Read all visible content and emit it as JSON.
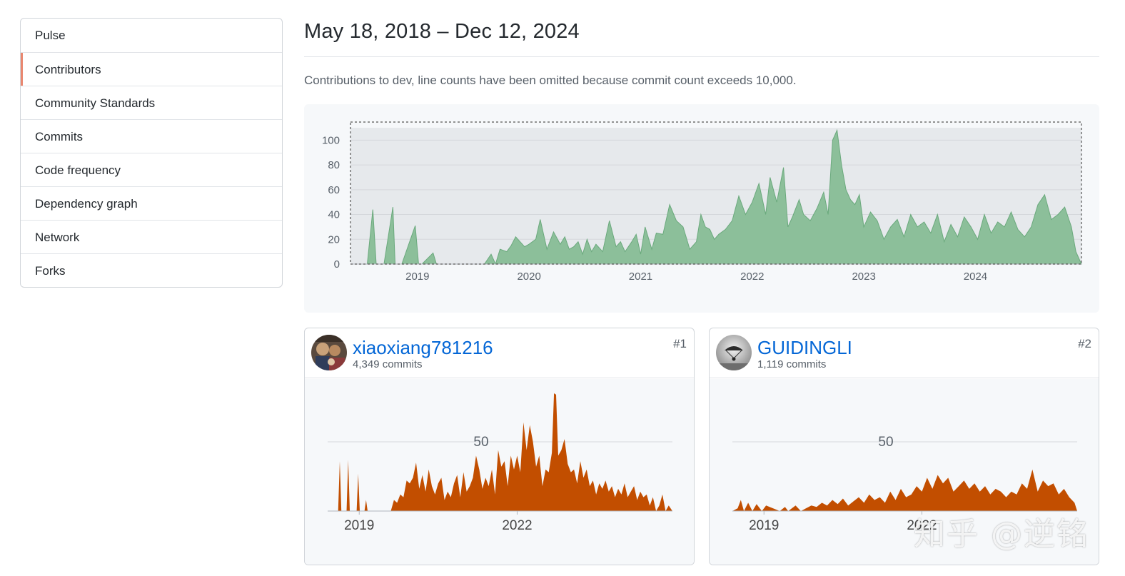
{
  "sidebar": {
    "items": [
      {
        "label": "Pulse"
      },
      {
        "label": "Contributors",
        "selected": true
      },
      {
        "label": "Community Standards"
      },
      {
        "label": "Commits"
      },
      {
        "label": "Code frequency"
      },
      {
        "label": "Dependency graph"
      },
      {
        "label": "Network"
      },
      {
        "label": "Forks"
      }
    ]
  },
  "header": {
    "title": "May 18, 2018 – Dec 12, 2024",
    "subtitle": "Contributions to dev, line counts have been omitted because commit count exceeds 10,000."
  },
  "colors": {
    "overview_fill": "#8cbf9a",
    "overview_stroke": "#6aa97c",
    "contributor_fill": "#c24e00",
    "selected_accent": "#e9876f",
    "link": "#0366d6"
  },
  "contributors": [
    {
      "rank": "#1",
      "name": "xiaoxiang781216",
      "commits": "4,349 commits",
      "avatar_icon": "photo-avatar-icon"
    },
    {
      "rank": "#2",
      "name": "GUIDINGLI",
      "commits": "1,119 commits",
      "avatar_icon": "parachute-avatar-icon"
    }
  ],
  "watermark": "知乎 @逆铭",
  "chart_data": [
    {
      "id": "overview",
      "type": "area",
      "title": "",
      "xlabel": "",
      "ylabel": "",
      "ylim": [
        0,
        110
      ],
      "xlim": [
        2018.4,
        2024.95
      ],
      "yticks": [
        "0",
        "20",
        "40",
        "60",
        "80",
        "100"
      ],
      "xticks": [
        "2019",
        "2020",
        "2021",
        "2022",
        "2023",
        "2024"
      ],
      "grid": true,
      "x": [
        2018.4,
        2018.55,
        2018.6,
        2018.63,
        2018.66,
        2018.7,
        2018.78,
        2018.8,
        2018.83,
        2018.86,
        2018.98,
        2019.01,
        2019.04,
        2019.14,
        2019.17,
        2019.2,
        2019.6,
        2019.66,
        2019.7,
        2019.74,
        2019.8,
        2019.84,
        2019.88,
        2019.92,
        2019.96,
        2020.0,
        2020.06,
        2020.1,
        2020.16,
        2020.22,
        2020.28,
        2020.32,
        2020.36,
        2020.4,
        2020.44,
        2020.48,
        2020.52,
        2020.56,
        2020.6,
        2020.66,
        2020.72,
        2020.78,
        2020.82,
        2020.86,
        2020.92,
        2020.96,
        2021.0,
        2021.04,
        2021.1,
        2021.14,
        2021.2,
        2021.26,
        2021.32,
        2021.38,
        2021.44,
        2021.5,
        2021.54,
        2021.58,
        2021.62,
        2021.66,
        2021.7,
        2021.76,
        2021.82,
        2021.88,
        2021.94,
        2022.0,
        2022.06,
        2022.12,
        2022.16,
        2022.22,
        2022.28,
        2022.32,
        2022.36,
        2022.42,
        2022.46,
        2022.52,
        2022.58,
        2022.64,
        2022.68,
        2022.72,
        2022.76,
        2022.8,
        2022.84,
        2022.88,
        2022.92,
        2022.96,
        2023.0,
        2023.06,
        2023.12,
        2023.18,
        2023.24,
        2023.3,
        2023.36,
        2023.42,
        2023.48,
        2023.54,
        2023.6,
        2023.66,
        2023.72,
        2023.78,
        2023.84,
        2023.9,
        2023.96,
        2024.02,
        2024.08,
        2024.14,
        2024.2,
        2024.26,
        2024.32,
        2024.38,
        2024.44,
        2024.5,
        2024.56,
        2024.62,
        2024.68,
        2024.74,
        2024.8,
        2024.86,
        2024.9,
        2024.95
      ],
      "values": [
        0,
        0,
        44,
        0,
        0,
        0,
        46,
        0,
        0,
        0,
        31,
        0,
        0,
        9,
        0,
        0,
        0,
        8,
        0,
        12,
        10,
        15,
        22,
        18,
        14,
        16,
        20,
        36,
        12,
        26,
        16,
        22,
        12,
        14,
        18,
        8,
        20,
        10,
        16,
        10,
        35,
        14,
        18,
        10,
        18,
        24,
        8,
        30,
        12,
        25,
        24,
        48,
        35,
        30,
        12,
        18,
        40,
        30,
        28,
        20,
        24,
        28,
        35,
        55,
        40,
        50,
        65,
        40,
        70,
        50,
        78,
        30,
        38,
        52,
        40,
        35,
        45,
        58,
        40,
        100,
        108,
        80,
        60,
        52,
        48,
        56,
        30,
        42,
        35,
        20,
        30,
        36,
        22,
        40,
        30,
        34,
        25,
        40,
        18,
        32,
        22,
        38,
        30,
        20,
        40,
        25,
        34,
        30,
        42,
        28,
        22,
        30,
        48,
        56,
        36,
        40,
        46,
        30,
        10,
        0
      ],
      "series_color": "#8cbf9a"
    },
    {
      "id": "contributor-1",
      "type": "area",
      "ylim": [
        0,
        85
      ],
      "xlim": [
        2018.4,
        2024.95
      ],
      "yticks": [
        "50"
      ],
      "xticks": [
        "2019",
        "2022"
      ],
      "x": [
        2018.4,
        2018.6,
        2018.63,
        2018.66,
        2018.76,
        2018.79,
        2018.82,
        2018.95,
        2018.98,
        2019.01,
        2019.1,
        2019.13,
        2019.16,
        2019.6,
        2019.66,
        2019.72,
        2019.78,
        2019.84,
        2019.9,
        2019.96,
        2020.02,
        2020.08,
        2020.14,
        2020.2,
        2020.26,
        2020.32,
        2020.38,
        2020.44,
        2020.5,
        2020.56,
        2020.62,
        2020.68,
        2020.74,
        2020.8,
        2020.86,
        2020.92,
        2020.98,
        2021.04,
        2021.1,
        2021.16,
        2021.22,
        2021.28,
        2021.34,
        2021.4,
        2021.46,
        2021.52,
        2021.58,
        2021.64,
        2021.7,
        2021.76,
        2021.82,
        2021.88,
        2021.94,
        2022.0,
        2022.06,
        2022.12,
        2022.18,
        2022.24,
        2022.3,
        2022.36,
        2022.42,
        2022.48,
        2022.54,
        2022.6,
        2022.66,
        2022.7,
        2022.74,
        2022.78,
        2022.84,
        2022.9,
        2022.96,
        2023.02,
        2023.08,
        2023.14,
        2023.2,
        2023.26,
        2023.32,
        2023.38,
        2023.44,
        2023.5,
        2023.56,
        2023.62,
        2023.68,
        2023.74,
        2023.8,
        2023.86,
        2023.92,
        2023.98,
        2024.04,
        2024.1,
        2024.16,
        2024.22,
        2024.28,
        2024.34,
        2024.4,
        2024.46,
        2024.52,
        2024.58,
        2024.64,
        2024.7,
        2024.76,
        2024.82,
        2024.88,
        2024.95
      ],
      "values": [
        0,
        0,
        36,
        0,
        0,
        37,
        0,
        0,
        27,
        0,
        0,
        8,
        0,
        0,
        8,
        6,
        12,
        10,
        22,
        20,
        24,
        35,
        16,
        26,
        14,
        30,
        18,
        12,
        20,
        24,
        8,
        14,
        10,
        20,
        26,
        10,
        28,
        14,
        18,
        24,
        40,
        30,
        16,
        24,
        18,
        30,
        12,
        44,
        32,
        36,
        18,
        40,
        30,
        40,
        28,
        64,
        44,
        62,
        50,
        32,
        40,
        18,
        30,
        28,
        42,
        85,
        84,
        40,
        44,
        52,
        34,
        28,
        30,
        20,
        36,
        24,
        30,
        18,
        22,
        12,
        20,
        16,
        22,
        14,
        18,
        10,
        16,
        12,
        20,
        10,
        14,
        18,
        8,
        14,
        10,
        12,
        4,
        10,
        0,
        4,
        12,
        0,
        4,
        0
      ],
      "series_color": "#c24e00"
    },
    {
      "id": "contributor-2",
      "type": "area",
      "ylim": [
        0,
        85
      ],
      "xlim": [
        2018.4,
        2024.95
      ],
      "yticks": [
        "50"
      ],
      "xticks": [
        "2019",
        "2022"
      ],
      "x": [
        2018.4,
        2018.5,
        2018.56,
        2018.62,
        2018.7,
        2018.78,
        2018.86,
        2018.96,
        2019.04,
        2019.3,
        2019.4,
        2019.46,
        2019.6,
        2019.7,
        2019.8,
        2019.9,
        2020.0,
        2020.1,
        2020.2,
        2020.3,
        2020.4,
        2020.5,
        2020.6,
        2020.7,
        2020.8,
        2020.9,
        2021.0,
        2021.1,
        2021.2,
        2021.3,
        2021.4,
        2021.5,
        2021.6,
        2021.7,
        2021.8,
        2021.9,
        2022.0,
        2022.1,
        2022.2,
        2022.3,
        2022.4,
        2022.5,
        2022.6,
        2022.7,
        2022.8,
        2022.9,
        2023.0,
        2023.1,
        2023.2,
        2023.3,
        2023.4,
        2023.5,
        2023.6,
        2023.7,
        2023.8,
        2023.9,
        2024.0,
        2024.1,
        2024.2,
        2024.3,
        2024.4,
        2024.5,
        2024.6,
        2024.7,
        2024.8,
        2024.9,
        2024.95
      ],
      "values": [
        0,
        2,
        8,
        0,
        6,
        0,
        5,
        0,
        4,
        0,
        3,
        0,
        4,
        0,
        2,
        4,
        3,
        6,
        4,
        8,
        5,
        9,
        4,
        7,
        10,
        6,
        12,
        8,
        10,
        6,
        14,
        8,
        16,
        10,
        12,
        18,
        14,
        24,
        16,
        26,
        20,
        24,
        14,
        18,
        22,
        16,
        20,
        14,
        18,
        12,
        16,
        14,
        10,
        14,
        12,
        20,
        16,
        30,
        14,
        22,
        18,
        20,
        12,
        16,
        10,
        6,
        0
      ],
      "series_color": "#c24e00"
    }
  ]
}
